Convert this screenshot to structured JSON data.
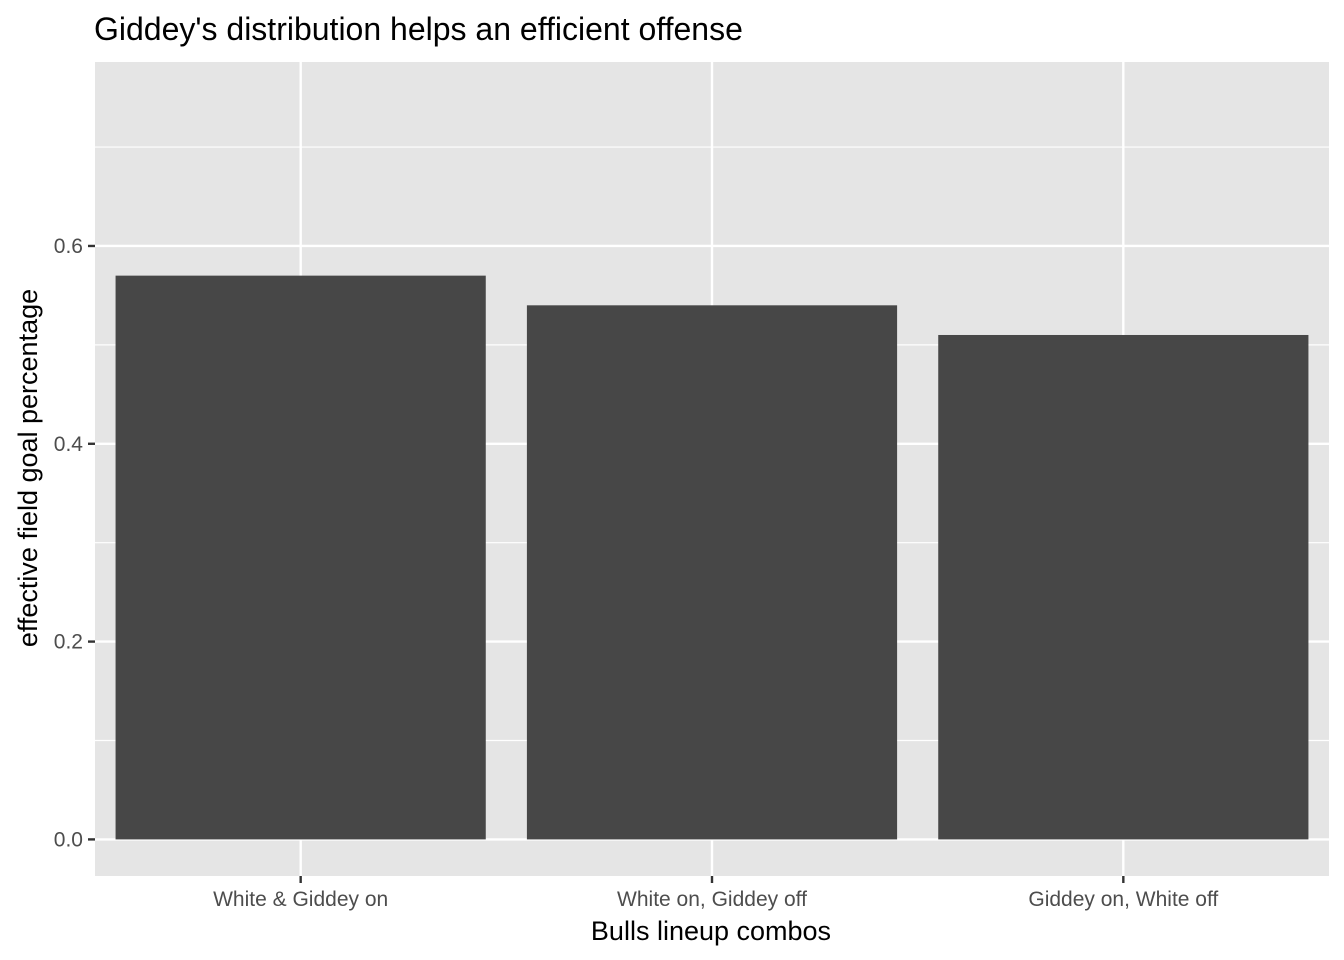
{
  "chart_data": {
    "type": "bar",
    "title": "Giddey's distribution helps an efficient offense",
    "xlabel": "Bulls lineup combos",
    "ylabel": "effective field goal percentage",
    "categories": [
      "White & Giddey on",
      "White on, Giddey off",
      "Giddey on, White off"
    ],
    "values": [
      0.57,
      0.54,
      0.51
    ],
    "ylim": [
      -0.037,
      0.786
    ],
    "yticks": [
      0.0,
      0.2,
      0.4,
      0.6
    ],
    "ytick_labels": [
      "0.0",
      "0.2",
      "0.4",
      "0.6"
    ],
    "grid": true,
    "legend": "none"
  },
  "colors": {
    "panel_background": "#e5e5e5",
    "gridline": "#ffffff",
    "bar_fill": "#474747",
    "tick_text": "#4d4d4d",
    "axis_text": "#000000",
    "tick_mark": "#333333"
  }
}
